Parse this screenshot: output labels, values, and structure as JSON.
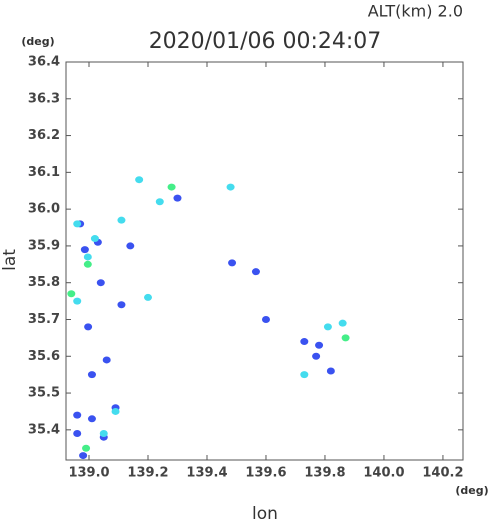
{
  "chart_data": {
    "type": "scatter",
    "title": "2020/01/06 00:24:07",
    "subtitle": "ALT(km) 2.0",
    "y_unit": "(deg)",
    "x_unit": "(deg)",
    "x_label": "lon",
    "y_label": "lat",
    "xlim": [
      138.922,
      140.268
    ],
    "ylim": [
      35.318,
      36.4
    ],
    "xticks": [
      {
        "value": 139,
        "label": "139.0"
      },
      139.2,
      139.4,
      139.6,
      139.8,
      {
        "value": 140,
        "label": "140.0"
      },
      140.2
    ],
    "yticks": [
      36.4,
      36.3,
      36.2,
      36.1,
      {
        "value": 36,
        "label": "36.0"
      },
      35.9,
      35.8,
      35.7,
      35.6,
      35.5,
      35.4
    ],
    "series": [
      {
        "color": "#3a52f0",
        "x": [
          139.485,
          139.566,
          139.6,
          139.73,
          139.77,
          139.82,
          139.78,
          139.14,
          139.04,
          139.11,
          139.01,
          139.06,
          138.96,
          139.01,
          139.05,
          138.98,
          138.96,
          138.997,
          138.986,
          138.97,
          139.03,
          139.3,
          139.09
        ],
        "y": [
          35.854,
          35.83,
          35.7,
          35.64,
          35.6,
          35.56,
          35.63,
          35.9,
          35.8,
          35.74,
          35.55,
          35.59,
          35.44,
          35.43,
          35.38,
          35.33,
          35.39,
          35.68,
          35.89,
          35.96,
          35.91,
          36.03,
          35.46
        ]
      },
      {
        "color": "#44dcee",
        "x": [
          138.996,
          138.96,
          139.02,
          138.96,
          139.86,
          139.73,
          139.2,
          139.24,
          139.17,
          139.48,
          139.11,
          139.09,
          139.05,
          139.81
        ],
        "y": [
          35.87,
          35.96,
          35.92,
          35.75,
          35.69,
          35.55,
          35.76,
          36.02,
          36.08,
          36.06,
          35.97,
          35.45,
          35.39,
          35.68
        ]
      },
      {
        "color": "#44ee88",
        "x": [
          138.996,
          138.99,
          139.28,
          139.87,
          138.94
        ],
        "y": [
          35.85,
          35.35,
          36.06,
          35.65,
          35.77
        ]
      }
    ]
  }
}
